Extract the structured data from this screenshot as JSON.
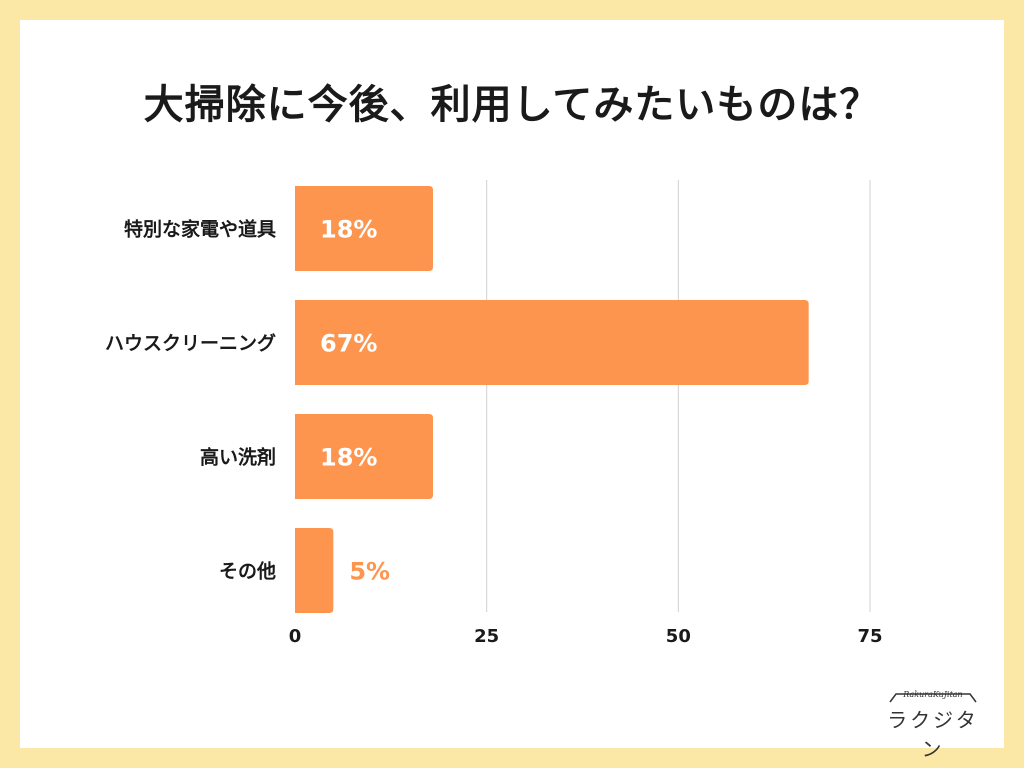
{
  "chart_data": {
    "type": "bar",
    "orientation": "horizontal",
    "title": "大掃除に今後、利用してみたいものは？",
    "categories": [
      "特別な家電や道具",
      "ハウスクリーニング",
      "高い洗剤",
      "その他"
    ],
    "values": [
      18,
      67,
      18,
      5
    ],
    "data_labels": [
      "18%",
      "67%",
      "18%",
      "5%"
    ],
    "x_ticks": [
      0,
      25,
      50,
      75
    ],
    "x_tick_labels": [
      "0",
      "25",
      "50",
      "75"
    ],
    "xlim": [
      0,
      75
    ],
    "xlabel": "",
    "ylabel": "",
    "grid": true
  },
  "colors": {
    "background": "#fbe7a6",
    "card": "#ffffff",
    "bar": "#fe954f",
    "label_inside": "#ffffff",
    "label_outside": "#fe954f",
    "grid": "#d0d0d0",
    "text": "#1a1a1a"
  },
  "logo": {
    "subtitle": "RakuraKuJitan",
    "name": "ラクジタン"
  }
}
